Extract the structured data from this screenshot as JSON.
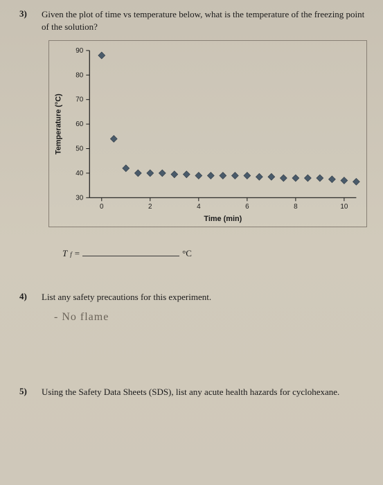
{
  "q3": {
    "number": "3)",
    "text": "Given the plot of time vs temperature below, what is the temperature of the freezing point of the solution?"
  },
  "chart": {
    "type": "scatter",
    "xlabel": "Time (min)",
    "ylabel": "Temperature (°C)",
    "xlim": [
      -0.5,
      10.5
    ],
    "ylim": [
      30,
      90
    ],
    "xticks": [
      0,
      2,
      4,
      6,
      8,
      10
    ],
    "yticks": [
      30,
      40,
      50,
      60,
      70,
      80,
      90
    ],
    "marker": "diamond",
    "marker_size": 5,
    "marker_color": "#4a5b6a",
    "axis_color": "#1a1a1a",
    "grid_color": "none",
    "axis_fontsize": 10,
    "label_fontsize": 11,
    "background_color": "transparent",
    "data": [
      {
        "x": 0.0,
        "y": 88
      },
      {
        "x": 0.5,
        "y": 54
      },
      {
        "x": 1.0,
        "y": 42
      },
      {
        "x": 1.5,
        "y": 40
      },
      {
        "x": 2.0,
        "y": 40
      },
      {
        "x": 2.5,
        "y": 40
      },
      {
        "x": 3.0,
        "y": 39.5
      },
      {
        "x": 3.5,
        "y": 39.5
      },
      {
        "x": 4.0,
        "y": 39
      },
      {
        "x": 4.5,
        "y": 39
      },
      {
        "x": 5.0,
        "y": 39
      },
      {
        "x": 5.5,
        "y": 39
      },
      {
        "x": 6.0,
        "y": 39
      },
      {
        "x": 6.5,
        "y": 38.5
      },
      {
        "x": 7.0,
        "y": 38.5
      },
      {
        "x": 7.5,
        "y": 38
      },
      {
        "x": 8.0,
        "y": 38
      },
      {
        "x": 8.5,
        "y": 38
      },
      {
        "x": 9.0,
        "y": 38
      },
      {
        "x": 9.5,
        "y": 37.5
      },
      {
        "x": 10.0,
        "y": 37
      },
      {
        "x": 10.5,
        "y": 36.5
      }
    ]
  },
  "answer": {
    "prefix": "T",
    "sub": "f",
    "equals": " =",
    "unit": "°C"
  },
  "q4": {
    "number": "4)",
    "text": "List any safety precautions for this experiment.",
    "handwritten": "- No flame"
  },
  "q5": {
    "number": "5)",
    "text": "Using the Safety Data Sheets (SDS), list any acute health hazards for cyclohexane."
  }
}
